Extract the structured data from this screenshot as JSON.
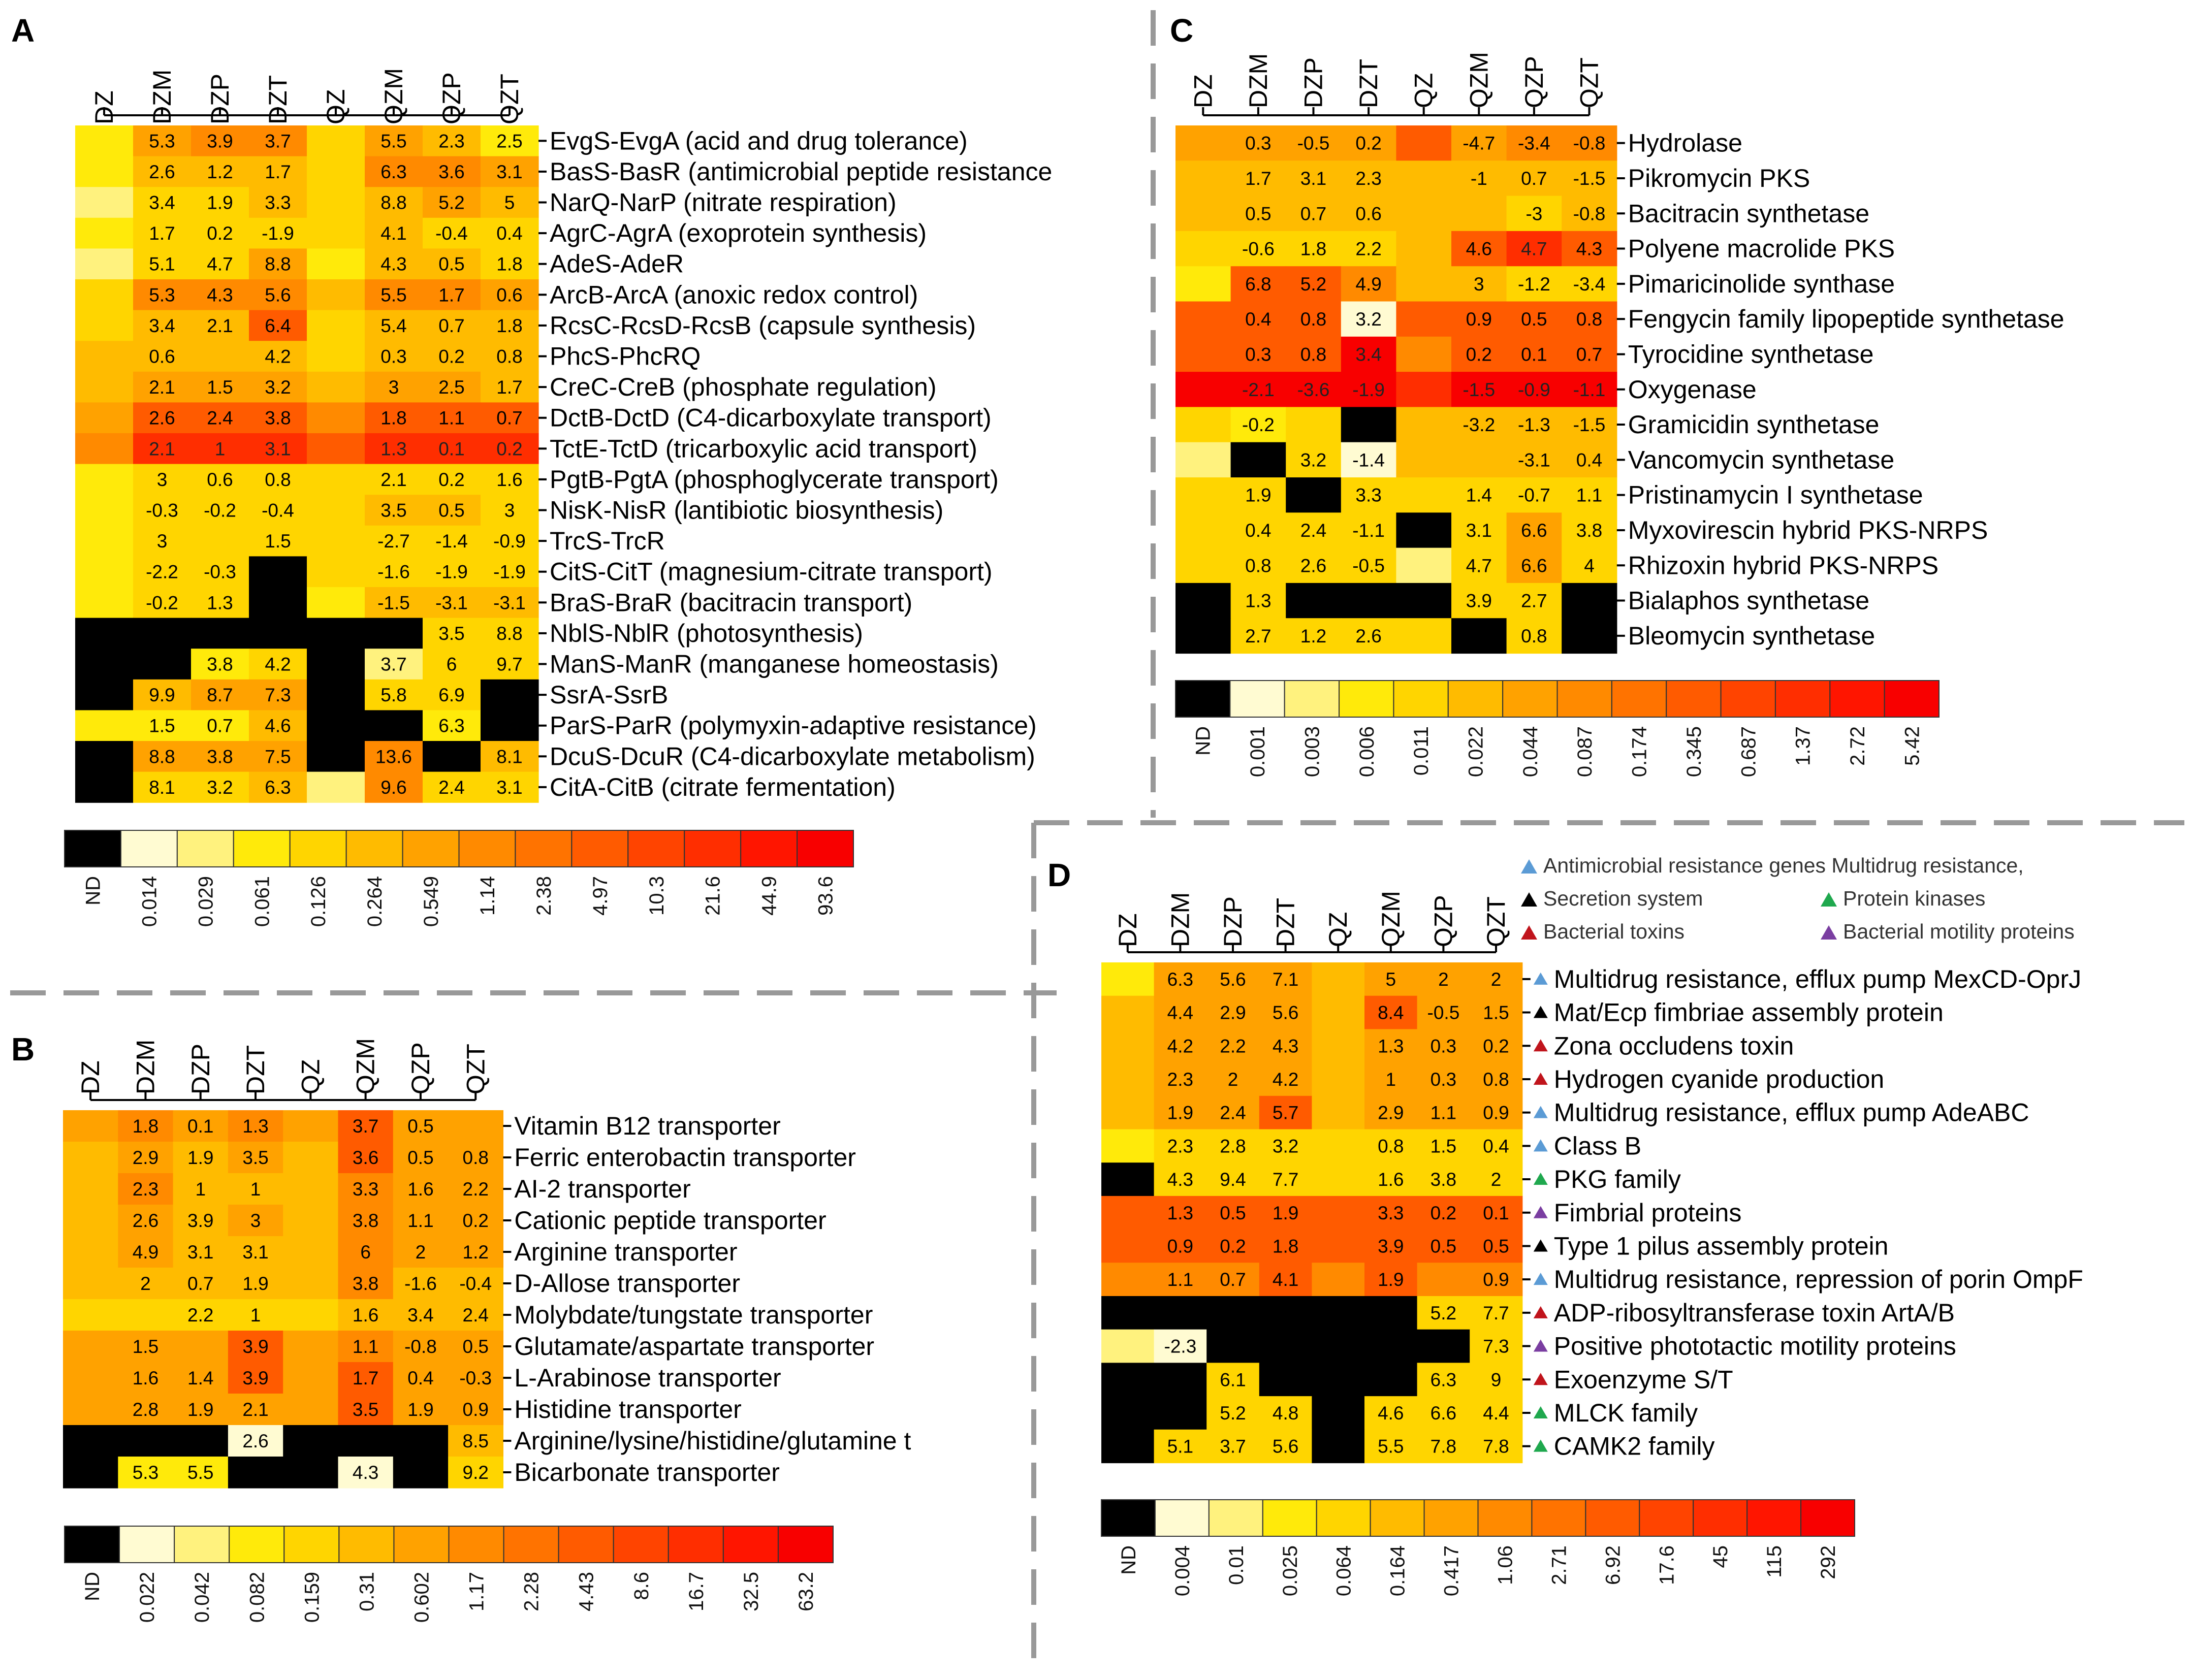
{
  "chart_data": [
    {
      "id": "A",
      "type": "heatmap",
      "panel_label": "A",
      "columns": [
        "DZ",
        "DZM",
        "DZP",
        "DZT",
        "QZ",
        "QZM",
        "QZP",
        "QZT"
      ],
      "rows": [
        "EvgS-EvgA (acid and drug tolerance)",
        "BasS-BasR (antimicrobial peptide resistance",
        "NarQ-NarP (nitrate respiration)",
        "AgrC-AgrA (exoprotein synthesis)",
        "AdeS-AdeR",
        "ArcB-ArcA (anoxic redox control)",
        "RcsC-RcsD-RcsB (capsule synthesis)",
        "PhcS-PhcRQ",
        "CreC-CreB (phosphate regulation)",
        "DctB-DctD (C4-dicarboxylate transport)",
        "TctE-TctD (tricarboxylic acid transport)",
        "PgtB-PgtA (phosphoglycerate transport)",
        "NisK-NisR (lantibiotic biosynthesis)",
        "TrcS-TrcR",
        "CitS-CitT (magnesium-citrate transport)",
        "BraS-BraR (bacitracin transport)",
        "NblS-NblR (photosynthesis)",
        "ManS-ManR (manganese homeostasis)",
        "SsrA-SsrB",
        "ParS-ParR (polymyxin-adaptive resistance)",
        "DcuS-DcuR (C4-dicarboxylate metabolism)",
        "CitA-CitB (citrate fermentation)"
      ],
      "level_colors": [
        3,
        6,
        7,
        7,
        4,
        6,
        5,
        3,
        3,
        5,
        5,
        5,
        4,
        7,
        7,
        6,
        2,
        4,
        4,
        5,
        4,
        5,
        6,
        5,
        3,
        4,
        4,
        4,
        4,
        5,
        4,
        4,
        2,
        4,
        4,
        6,
        3,
        5,
        5,
        4,
        4,
        7,
        7,
        7,
        5,
        7,
        7,
        6,
        4,
        5,
        5,
        8,
        4,
        5,
        5,
        5,
        5,
        5,
        5,
        5,
        4,
        5,
        5,
        5,
        5,
        6,
        6,
        6,
        5,
        6,
        6,
        5,
        6,
        8,
        8,
        8,
        7,
        8,
        8,
        8,
        7,
        9,
        9,
        9,
        8,
        9,
        9,
        9,
        3,
        4,
        4,
        4,
        4,
        4,
        4,
        4,
        3,
        4,
        4,
        4,
        4,
        5,
        5,
        4,
        3,
        4,
        4,
        4,
        4,
        4,
        4,
        4,
        3,
        4,
        4,
        0,
        4,
        4,
        4,
        4,
        3,
        4,
        4,
        0,
        3,
        5,
        5,
        5,
        0,
        0,
        0,
        0,
        0,
        0,
        4,
        4,
        0,
        0,
        3,
        4,
        0,
        2,
        4,
        4,
        0,
        5,
        6,
        6,
        0,
        4,
        4,
        0,
        3,
        3,
        3,
        5,
        0,
        0,
        3,
        0,
        0,
        6,
        6,
        6,
        0,
        7,
        0,
        5,
        0,
        4,
        4,
        5,
        2,
        7,
        4,
        4
      ],
      "cell_text": [
        "",
        "5.3",
        "3.9",
        "3.7",
        "",
        "5.5",
        "2.3",
        "2.5",
        "",
        "2.6",
        "1.2",
        "1.7",
        "",
        "6.3",
        "3.6",
        "3.1",
        "",
        "3.4",
        "1.9",
        "3.3",
        "",
        "8.8",
        "5.2",
        "5",
        "",
        "1.7",
        "0.2",
        "-1.9",
        "",
        "4.1",
        "-0.4",
        "0.4",
        "",
        "5.1",
        "4.7",
        "8.8",
        "",
        "4.3",
        "0.5",
        "1.8",
        "",
        "5.3",
        "4.3",
        "5.6",
        "",
        "5.5",
        "1.7",
        "0.6",
        "",
        "3.4",
        "2.1",
        "6.4",
        "",
        "5.4",
        "0.7",
        "1.8",
        "",
        "0.6",
        "",
        "4.2",
        "",
        "0.3",
        "0.2",
        "0.8",
        "",
        "2.1",
        "1.5",
        "3.2",
        "",
        "3",
        "2.5",
        "1.7",
        "",
        "2.6",
        "2.4",
        "3.8",
        "",
        "1.8",
        "1.1",
        "0.7",
        "",
        "2.1",
        "1",
        "3.1",
        "",
        "1.3",
        "0.1",
        "0.2",
        "",
        "3",
        "0.6",
        "0.8",
        "",
        "2.1",
        "0.2",
        "1.6",
        "",
        "-0.3",
        "-0.2",
        "-0.4",
        "",
        "3.5",
        "0.5",
        "3",
        "",
        "3",
        "",
        "1.5",
        "",
        "-2.7",
        "-1.4",
        "-0.9",
        "",
        "-2.2",
        "-0.3",
        "",
        "",
        "-1.6",
        "-1.9",
        "-1.9",
        "",
        "-0.2",
        "1.3",
        "",
        "",
        "-1.5",
        "-3.1",
        "-3.1",
        "",
        "",
        "",
        "",
        "",
        "",
        "3.5",
        "8.8",
        "",
        "",
        "3.8",
        "4.2",
        "",
        "3.7",
        "6",
        "9.7",
        "",
        "9.9",
        "8.7",
        "7.3",
        "",
        "5.8",
        "6.9",
        "",
        "",
        "1.5",
        "0.7",
        "4.6",
        "",
        "",
        "6.3",
        "",
        "",
        "8.8",
        "3.8",
        "7.5",
        "",
        "13.6",
        "",
        "8.1",
        "",
        "8.1",
        "3.2",
        "6.3",
        "",
        "9.6",
        "2.4",
        "3.1"
      ],
      "legend_labels": [
        "ND",
        "0.014",
        "0.029",
        "0.061",
        "0.126",
        "0.264",
        "0.549",
        "1.14",
        "2.38",
        "4.97",
        "10.3",
        "21.6",
        "44.9",
        "93.6"
      ],
      "legend_colors": [
        "#000000",
        "#fffbd2",
        "#fff27e",
        "#ffea0a",
        "#ffd500",
        "#ffbb00",
        "#ffa200",
        "#ff8a00",
        "#ff7300",
        "#ff5b00",
        "#ff4400",
        "#ff2e00",
        "#ff1500",
        "#f80000"
      ]
    },
    {
      "id": "B",
      "type": "heatmap",
      "panel_label": "B",
      "columns": [
        "DZ",
        "DZM",
        "DZP",
        "DZT",
        "QZ",
        "QZM",
        "QZP",
        "QZT"
      ],
      "rows": [
        "Vitamin B12 transporter",
        "Ferric enterobactin transporter",
        "AI-2 transporter",
        "Cationic peptide transporter",
        "Arginine transporter",
        "D-Allose transporter",
        "Molybdate/tungstate transporter",
        "Glutamate/aspartate transporter",
        "L-Arabinose transporter",
        "Histidine transporter",
        "Arginine/lysine/histidine/glutamine t",
        "Bicarbonate transporter"
      ],
      "level_colors": [
        6,
        7,
        6,
        7,
        6,
        8,
        6,
        6,
        5,
        6,
        5,
        6,
        5,
        8,
        6,
        6,
        5,
        7,
        5,
        5,
        5,
        7,
        6,
        6,
        5,
        6,
        5,
        6,
        5,
        7,
        6,
        6,
        5,
        6,
        5,
        5,
        5,
        7,
        6,
        6,
        5,
        5,
        5,
        5,
        5,
        7,
        5,
        5,
        4,
        4,
        4,
        4,
        4,
        5,
        5,
        5,
        6,
        6,
        6,
        8,
        6,
        7,
        6,
        6,
        6,
        6,
        6,
        8,
        6,
        8,
        6,
        6,
        6,
        6,
        6,
        6,
        6,
        8,
        6,
        6,
        0,
        0,
        0,
        1,
        0,
        0,
        0,
        5,
        0,
        3,
        3,
        0,
        0,
        1,
        0,
        4
      ],
      "cell_text": [
        "",
        "1.8",
        "0.1",
        "1.3",
        "",
        "3.7",
        "0.5",
        "",
        "",
        "2.9",
        "1.9",
        "3.5",
        "",
        "3.6",
        "0.5",
        "0.8",
        "",
        "2.3",
        "1",
        "1",
        "",
        "3.3",
        "1.6",
        "2.2",
        "",
        "2.6",
        "3.9",
        "3",
        "",
        "3.8",
        "1.1",
        "0.2",
        "",
        "4.9",
        "3.1",
        "3.1",
        "",
        "6",
        "2",
        "1.2",
        "",
        "2",
        "0.7",
        "1.9",
        "",
        "3.8",
        "-1.6",
        "-0.4",
        "",
        "",
        "2.2",
        "1",
        "",
        "1.6",
        "3.4",
        "2.4",
        "",
        "1.5",
        "",
        "3.9",
        "",
        "1.1",
        "-0.8",
        "0.5",
        "",
        "1.6",
        "1.4",
        "3.9",
        "",
        "1.7",
        "0.4",
        "-0.3",
        "",
        "2.8",
        "1.9",
        "2.1",
        "",
        "3.5",
        "1.9",
        "0.9",
        "",
        "",
        "",
        "2.6",
        "",
        "",
        "",
        "8.5",
        "",
        "5.3",
        "5.5",
        "",
        "",
        "4.3",
        "",
        "9.2"
      ],
      "legend_labels": [
        "ND",
        "0.022",
        "0.042",
        "0.082",
        "0.159",
        "0.31",
        "0.602",
        "1.17",
        "2.28",
        "4.43",
        "8.6",
        "16.7",
        "32.5",
        "63.2"
      ],
      "legend_colors": [
        "#000000",
        "#fffbd2",
        "#fff27e",
        "#ffea0a",
        "#ffd500",
        "#ffbb00",
        "#ffa200",
        "#ff8a00",
        "#ff7300",
        "#ff5b00",
        "#ff4400",
        "#ff2e00",
        "#ff1500",
        "#f80000"
      ]
    },
    {
      "id": "C",
      "type": "heatmap",
      "panel_label": "C",
      "columns": [
        "DZ",
        "DZM",
        "DZP",
        "DZT",
        "QZ",
        "QZM",
        "QZP",
        "QZT"
      ],
      "rows": [
        "Hydrolase",
        "Pikromycin PKS",
        "Bacitracin synthetase",
        "Polyene macrolide PKS",
        "Pimaricinolide synthase",
        "Fengycin family lipopeptide synthetase",
        "Tyrocidine synthetase",
        "Oxygenase",
        "Gramicidin synthetase",
        "Vancomycin synthetase",
        "Pristinamycin I synthetase",
        "Myxovirescin hybrid PKS-NRPS",
        "Rhizoxin hybrid PKS-NRPS",
        "Bialaphos synthetase",
        "Bleomycin synthetase"
      ],
      "level_colors": [
        6,
        6,
        6,
        6,
        8,
        6,
        7,
        7,
        5,
        5,
        5,
        5,
        5,
        5,
        5,
        5,
        5,
        5,
        5,
        5,
        5,
        5,
        4,
        5,
        4,
        4,
        4,
        4,
        5,
        8,
        9,
        8,
        3,
        8,
        8,
        7,
        5,
        5,
        4,
        4,
        8,
        8,
        8,
        1,
        8,
        8,
        8,
        8,
        8,
        8,
        8,
        10,
        7,
        8,
        8,
        8,
        10,
        10,
        10,
        10,
        9,
        10,
        10,
        10,
        4,
        3,
        4,
        0,
        5,
        5,
        5,
        5,
        2,
        0,
        4,
        1,
        5,
        5,
        5,
        5,
        4,
        4,
        0,
        4,
        4,
        4,
        4,
        4,
        4,
        4,
        4,
        4,
        0,
        4,
        6,
        4,
        4,
        4,
        4,
        4,
        2,
        4,
        6,
        4,
        0,
        4,
        0,
        0,
        0,
        4,
        4,
        0,
        0,
        4,
        4,
        4,
        4,
        0,
        4,
        0
      ],
      "cell_text": [
        "",
        "0.3",
        "-0.5",
        "0.2",
        "",
        "-4.7",
        "-3.4",
        "-0.8",
        "",
        "1.7",
        "3.1",
        "2.3",
        "",
        "-1",
        "0.7",
        "-1.5",
        "",
        "0.5",
        "0.7",
        "0.6",
        "",
        "",
        "-3",
        "-0.8",
        "",
        "-0.6",
        "1.8",
        "2.2",
        "",
        "4.6",
        "4.7",
        "4.3",
        "",
        "6.8",
        "5.2",
        "4.9",
        "",
        "3",
        "-1.2",
        "-3.4",
        "",
        "0.4",
        "0.8",
        "3.2",
        "",
        "0.9",
        "0.5",
        "0.8",
        "",
        "0.3",
        "0.8",
        "3.4",
        "",
        "0.2",
        "0.1",
        "0.7",
        "",
        "-2.1",
        "-3.6",
        "-1.9",
        "",
        "-1.5",
        "-0.9",
        "-1.1",
        "",
        "-0.2",
        "",
        "",
        "",
        "-3.2",
        "-1.3",
        "-1.5",
        "",
        "",
        "3.2",
        "-1.4",
        "",
        "",
        "-3.1",
        "0.4",
        "",
        "1.9",
        "",
        "3.3",
        "",
        "1.4",
        "-0.7",
        "1.1",
        "",
        "0.4",
        "2.4",
        "-1.1",
        "",
        "3.1",
        "6.6",
        "3.8",
        "",
        "0.8",
        "2.6",
        "-0.5",
        "",
        "4.7",
        "6.6",
        "4",
        "",
        "1.3",
        "",
        "",
        "",
        "3.9",
        "2.7",
        "",
        "",
        "2.7",
        "1.2",
        "2.6",
        "",
        "",
        "0.8",
        ""
      ],
      "legend_labels": [
        "ND",
        "0.001",
        "0.003",
        "0.006",
        "0.011",
        "0.022",
        "0.044",
        "0.087",
        "0.174",
        "0.345",
        "0.687",
        "1.37",
        "2.72",
        "5.42"
      ],
      "legend_colors": [
        "#000000",
        "#fffbd2",
        "#fff27e",
        "#ffea0a",
        "#ffd500",
        "#ffbb00",
        "#ffa200",
        "#ff8a00",
        "#ff7300",
        "#ff5b00",
        "#ff4400",
        "#ff2e00",
        "#ff1500",
        "#f80000"
      ]
    },
    {
      "id": "D",
      "type": "heatmap",
      "panel_label": "D",
      "columns": [
        "DZ",
        "DZM",
        "DZP",
        "DZT",
        "QZ",
        "QZM",
        "QZP",
        "QZT"
      ],
      "rows": [
        "Multidrug resistance, efflux pump MexCD-OprJ",
        "Mat/Ecp fimbriae assembly protein",
        "Zona occludens toxin",
        "Hydrogen cyanide production",
        "Multidrug resistance, efflux pump AdeABC",
        "Class B",
        "PKG family",
        "Fimbrial proteins",
        "Type 1 pilus assembly protein",
        "Multidrug resistance, repression of porin OmpF",
        "ADP-ribosyltransferase toxin ArtA/B",
        "Positive phototactic motility proteins",
        "Exoenzyme S/T",
        "MLCK family",
        "CAMK2 family"
      ],
      "row_markers": [
        "blue",
        "black",
        "red",
        "red",
        "blue",
        "blue",
        "green",
        "purple",
        "black",
        "blue",
        "red",
        "purple",
        "red",
        "green",
        "green"
      ],
      "marker_legend": [
        {
          "label": "Antimicrobial resistance genes Multidrug resistance,",
          "color": "blue"
        },
        {
          "label": "Secretion system",
          "color": "black"
        },
        {
          "label": "Protein kinases",
          "color": "green"
        },
        {
          "label": "Bacterial toxins",
          "color": "red"
        },
        {
          "label": "Bacterial motility proteins",
          "color": "purple"
        }
      ],
      "level_colors": [
        3,
        6,
        6,
        6,
        5,
        6,
        6,
        6,
        5,
        6,
        6,
        6,
        5,
        8,
        6,
        6,
        5,
        6,
        6,
        6,
        5,
        6,
        6,
        6,
        5,
        6,
        6,
        6,
        5,
        6,
        6,
        6,
        5,
        6,
        6,
        8,
        5,
        6,
        6,
        6,
        3,
        4,
        4,
        4,
        4,
        4,
        4,
        4,
        0,
        4,
        4,
        4,
        4,
        4,
        4,
        4,
        8,
        8,
        8,
        8,
        8,
        8,
        8,
        8,
        8,
        8,
        8,
        8,
        8,
        8,
        8,
        8,
        7,
        7,
        7,
        8,
        7,
        8,
        7,
        7,
        0,
        0,
        0,
        0,
        0,
        0,
        4,
        4,
        2,
        1,
        0,
        0,
        0,
        0,
        0,
        4,
        0,
        0,
        4,
        0,
        0,
        0,
        4,
        4,
        0,
        0,
        4,
        4,
        0,
        4,
        4,
        4,
        0,
        4,
        4,
        4,
        0,
        4,
        4,
        4
      ],
      "cell_text": [
        "",
        "6.3",
        "5.6",
        "7.1",
        "",
        "5",
        "2",
        "2",
        "",
        "4.4",
        "2.9",
        "5.6",
        "",
        "8.4",
        "-0.5",
        "1.5",
        "",
        "4.2",
        "2.2",
        "4.3",
        "",
        "1.3",
        "0.3",
        "0.2",
        "",
        "2.3",
        "2",
        "4.2",
        "",
        "1",
        "0.3",
        "0.8",
        "",
        "1.9",
        "2.4",
        "5.7",
        "",
        "2.9",
        "1.1",
        "0.9",
        "",
        "2.3",
        "2.8",
        "3.2",
        "",
        "0.8",
        "1.5",
        "0.4",
        "",
        "4.3",
        "9.4",
        "7.7",
        "",
        "1.6",
        "3.8",
        "2",
        "",
        "1.3",
        "0.5",
        "1.9",
        "",
        "3.3",
        "0.2",
        "0.1",
        "",
        "0.9",
        "0.2",
        "1.8",
        "",
        "3.9",
        "0.5",
        "0.5",
        "",
        "1.1",
        "0.7",
        "4.1",
        "",
        "1.9",
        "",
        "0.9",
        "",
        "",
        "",
        "",
        "",
        "",
        "5.2",
        "7.7",
        "",
        "-2.3",
        "",
        "",
        "",
        "",
        "",
        "7.3",
        "",
        "",
        "6.1",
        "",
        "",
        "",
        "6.3",
        "9",
        "",
        "",
        "5.2",
        "4.8",
        "",
        "4.6",
        "6.6",
        "4.4",
        "",
        "5.1",
        "3.7",
        "5.6",
        "",
        "5.5",
        "7.8",
        "7.8"
      ],
      "legend_labels": [
        "ND",
        "0.004",
        "0.01",
        "0.025",
        "0.064",
        "0.164",
        "0.417",
        "1.06",
        "2.71",
        "6.92",
        "17.6",
        "45",
        "115",
        "292"
      ],
      "legend_colors": [
        "#000000",
        "#fffbd2",
        "#fff27e",
        "#ffea0a",
        "#ffd500",
        "#ffbb00",
        "#ffa200",
        "#ff8a00",
        "#ff7300",
        "#ff5b00",
        "#ff4400",
        "#ff2e00",
        "#ff1500",
        "#f80000"
      ]
    }
  ],
  "cell_palette": [
    "#000000",
    "#fffbd2",
    "#fff27e",
    "#ffea0a",
    "#ffd500",
    "#ffbb00",
    "#ffa200",
    "#ff8a00",
    "#ff5b00",
    "#ff2e00",
    "#f80000"
  ],
  "marker_colors": {
    "blue": "#5b9bd5",
    "black": "#000000",
    "red": "#c0141c",
    "green": "#1fa84e",
    "purple": "#7a3ea1"
  }
}
